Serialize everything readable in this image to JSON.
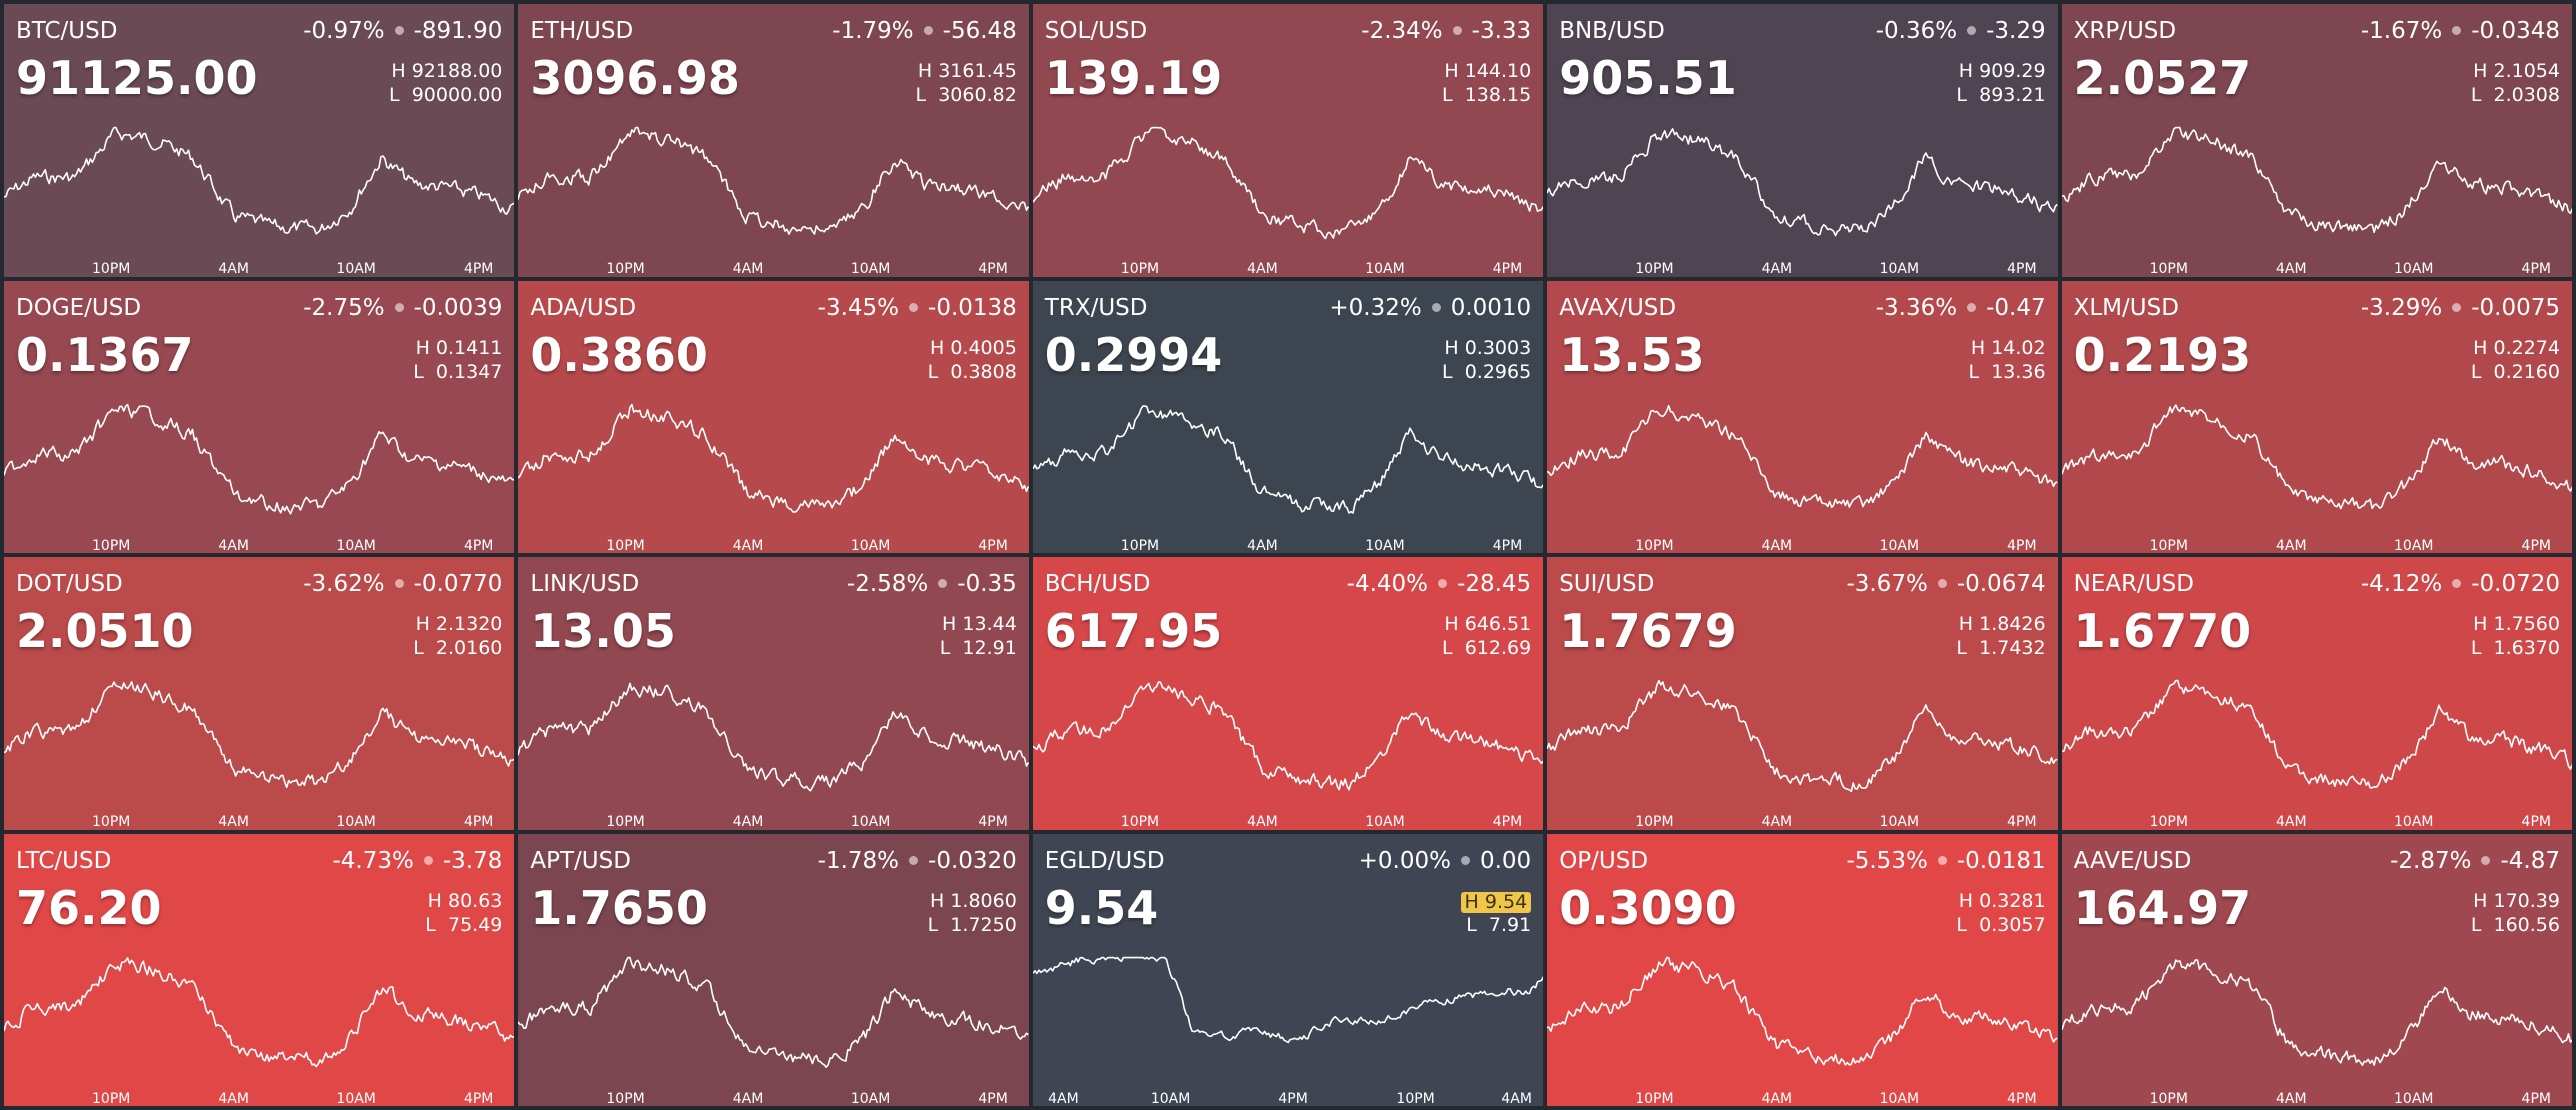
{
  "tiles": [
    {
      "pair": "BTC/USD",
      "change_pct": "-0.97%",
      "change_abs": "-891.90",
      "price": "91125.00",
      "high_label": "H",
      "high": "92188.00",
      "low_label": "L",
      "low": "90000.00",
      "color": "#6a4a54",
      "ticks": [
        "10PM",
        "4AM",
        "10AM",
        "4PM"
      ]
    },
    {
      "pair": "ETH/USD",
      "change_pct": "-1.79%",
      "change_abs": "-56.48",
      "price": "3096.98",
      "high_label": "H",
      "high": "3161.45",
      "low_label": "L",
      "low": "3060.82",
      "color": "#7e4650",
      "ticks": [
        "10PM",
        "4AM",
        "10AM",
        "4PM"
      ]
    },
    {
      "pair": "SOL/USD",
      "change_pct": "-2.34%",
      "change_abs": "-3.33",
      "price": "139.19",
      "high_label": "H",
      "high": "144.10",
      "low_label": "L",
      "low": "138.15",
      "color": "#924850",
      "ticks": [
        "10PM",
        "4AM",
        "10AM",
        "4PM"
      ]
    },
    {
      "pair": "BNB/USD",
      "change_pct": "-0.36%",
      "change_abs": "-3.29",
      "price": "905.51",
      "high_label": "H",
      "high": "909.29",
      "low_label": "L",
      "low": "893.21",
      "color": "#4f4552",
      "ticks": [
        "10PM",
        "4AM",
        "10AM",
        "4PM"
      ]
    },
    {
      "pair": "XRP/USD",
      "change_pct": "-1.67%",
      "change_abs": "-0.0348",
      "price": "2.0527",
      "high_label": "H",
      "high": "2.1054",
      "low_label": "L",
      "low": "2.0308",
      "color": "#7d4650",
      "ticks": [
        "10PM",
        "4AM",
        "10AM",
        "4PM"
      ]
    },
    {
      "pair": "DOGE/USD",
      "change_pct": "-2.75%",
      "change_abs": "-0.0039",
      "price": "0.1367",
      "high_label": "H",
      "high": "0.1411",
      "low_label": "L",
      "low": "0.1347",
      "color": "#974850",
      "ticks": [
        "10PM",
        "4AM",
        "10AM",
        "4PM"
      ]
    },
    {
      "pair": "ADA/USD",
      "change_pct": "-3.45%",
      "change_abs": "-0.0138",
      "price": "0.3860",
      "high_label": "H",
      "high": "0.4005",
      "low_label": "L",
      "low": "0.3808",
      "color": "#b6494b",
      "ticks": [
        "10PM",
        "4AM",
        "10AM",
        "4PM"
      ]
    },
    {
      "pair": "TRX/USD",
      "change_pct": "+0.32%",
      "change_abs": "0.0010",
      "price": "0.2994",
      "high_label": "H",
      "high": "0.3003",
      "low_label": "L",
      "low": "0.2965",
      "color": "#3d4550",
      "ticks": [
        "10PM",
        "4AM",
        "10AM",
        "4PM"
      ]
    },
    {
      "pair": "AVAX/USD",
      "change_pct": "-3.36%",
      "change_abs": "-0.47",
      "price": "13.53",
      "high_label": "H",
      "high": "14.02",
      "low_label": "L",
      "low": "13.36",
      "color": "#b3494c",
      "ticks": [
        "10PM",
        "4AM",
        "10AM",
        "4PM"
      ]
    },
    {
      "pair": "XLM/USD",
      "change_pct": "-3.29%",
      "change_abs": "-0.0075",
      "price": "0.2193",
      "high_label": "H",
      "high": "0.2274",
      "low_label": "L",
      "low": "0.2160",
      "color": "#b1494c",
      "ticks": [
        "10PM",
        "4AM",
        "10AM",
        "4PM"
      ]
    },
    {
      "pair": "DOT/USD",
      "change_pct": "-3.62%",
      "change_abs": "-0.0770",
      "price": "2.0510",
      "high_label": "H",
      "high": "2.1320",
      "low_label": "L",
      "low": "2.0160",
      "color": "#bb4a4b",
      "ticks": [
        "10PM",
        "4AM",
        "10AM",
        "4PM"
      ]
    },
    {
      "pair": "LINK/USD",
      "change_pct": "-2.58%",
      "change_abs": "-0.35",
      "price": "13.05",
      "high_label": "H",
      "high": "13.44",
      "low_label": "L",
      "low": "12.91",
      "color": "#924850",
      "ticks": [
        "10PM",
        "4AM",
        "10AM",
        "4PM"
      ]
    },
    {
      "pair": "BCH/USD",
      "change_pct": "-4.40%",
      "change_abs": "-28.45",
      "price": "617.95",
      "high_label": "H",
      "high": "646.51",
      "low_label": "L",
      "low": "612.69",
      "color": "#d6474a",
      "ticks": [
        "10PM",
        "4AM",
        "10AM",
        "4PM"
      ]
    },
    {
      "pair": "SUI/USD",
      "change_pct": "-3.67%",
      "change_abs": "-0.0674",
      "price": "1.7679",
      "high_label": "H",
      "high": "1.8426",
      "low_label": "L",
      "low": "1.7432",
      "color": "#bc4a4b",
      "ticks": [
        "10PM",
        "4AM",
        "10AM",
        "4PM"
      ]
    },
    {
      "pair": "NEAR/USD",
      "change_pct": "-4.12%",
      "change_abs": "-0.0720",
      "price": "1.6770",
      "high_label": "H",
      "high": "1.7560",
      "low_label": "L",
      "low": "1.6370",
      "color": "#ce4749",
      "ticks": [
        "10PM",
        "4AM",
        "10AM",
        "4PM"
      ]
    },
    {
      "pair": "LTC/USD",
      "change_pct": "-4.73%",
      "change_abs": "-3.78",
      "price": "76.20",
      "high_label": "H",
      "high": "80.63",
      "low_label": "L",
      "low": "75.49",
      "color": "#e04747",
      "ticks": [
        "10PM",
        "4AM",
        "10AM",
        "4PM"
      ]
    },
    {
      "pair": "APT/USD",
      "change_pct": "-1.78%",
      "change_abs": "-0.0320",
      "price": "1.7650",
      "high_label": "H",
      "high": "1.8060",
      "low_label": "L",
      "low": "1.7250",
      "color": "#7b4650",
      "ticks": [
        "10PM",
        "4AM",
        "10AM",
        "4PM"
      ]
    },
    {
      "pair": "EGLD/USD",
      "change_pct": "+0.00%",
      "change_abs": "0.00",
      "price": "9.54",
      "high_label": "H",
      "high": "9.54",
      "low_label": "L",
      "low": "7.91",
      "color": "#3f4552",
      "high_highlight": true,
      "ticks": [
        "4AM",
        "10AM",
        "4PM",
        "10PM",
        "4AM"
      ]
    },
    {
      "pair": "OP/USD",
      "change_pct": "-5.53%",
      "change_abs": "-0.0181",
      "price": "0.3090",
      "high_label": "H",
      "high": "0.3281",
      "low_label": "L",
      "low": "0.3057",
      "color": "#e24747",
      "ticks": [
        "10PM",
        "4AM",
        "10AM",
        "4PM"
      ]
    },
    {
      "pair": "AAVE/USD",
      "change_pct": "-2.87%",
      "change_abs": "-4.87",
      "price": "164.97",
      "high_label": "H",
      "high": "170.39",
      "low_label": "L",
      "low": "160.56",
      "color": "#a0484f",
      "ticks": [
        "10PM",
        "4AM",
        "10AM",
        "4PM"
      ]
    }
  ]
}
